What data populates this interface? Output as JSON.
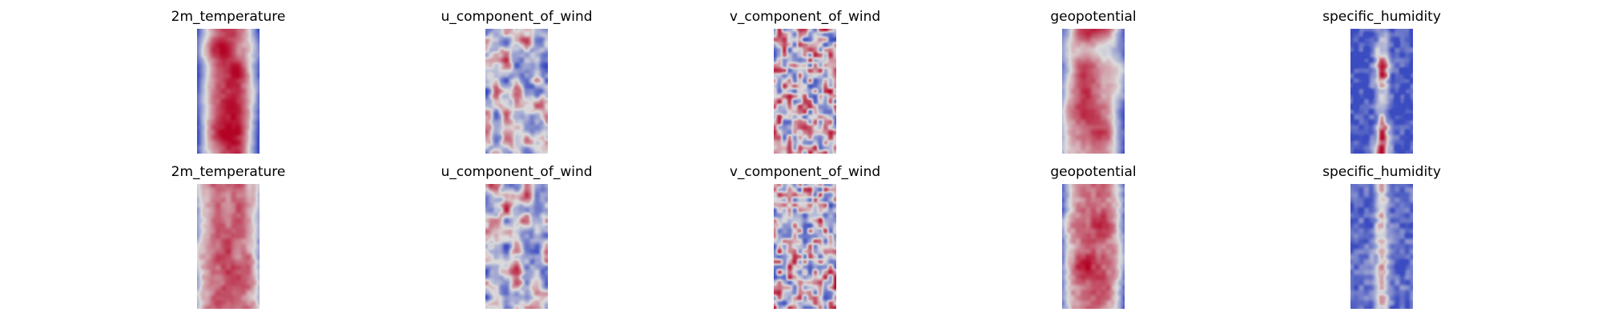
{
  "figure": {
    "panels": [
      {
        "title": "2m_temperature",
        "variable": "2m_temperature",
        "row": 1,
        "colormap": "coolwarm",
        "pattern": "warm-core",
        "seed": 11
      },
      {
        "title": "u_component_of_wind",
        "variable": "u_component_of_wind",
        "row": 1,
        "colormap": "coolwarm",
        "pattern": "wind",
        "seed": 23
      },
      {
        "title": "v_component_of_wind",
        "variable": "v_component_of_wind",
        "row": 1,
        "colormap": "coolwarm",
        "pattern": "wind-fine",
        "seed": 37
      },
      {
        "title": "geopotential",
        "variable": "geopotential",
        "row": 1,
        "colormap": "coolwarm",
        "pattern": "geo",
        "seed": 41
      },
      {
        "title": "specific_humidity",
        "variable": "specific_humidity",
        "row": 1,
        "colormap": "coolwarm",
        "pattern": "humidity",
        "seed": 53
      },
      {
        "title": "2m_temperature",
        "variable": "2m_temperature",
        "row": 2,
        "colormap": "coolwarm",
        "pattern": "warm-broad",
        "seed": 67
      },
      {
        "title": "u_component_of_wind",
        "variable": "u_component_of_wind",
        "row": 2,
        "colormap": "coolwarm",
        "pattern": "wind",
        "seed": 71
      },
      {
        "title": "v_component_of_wind",
        "variable": "v_component_of_wind",
        "row": 2,
        "colormap": "coolwarm",
        "pattern": "wind-fine",
        "seed": 83
      },
      {
        "title": "geopotential",
        "variable": "geopotential",
        "row": 2,
        "colormap": "coolwarm",
        "pattern": "geo-strong",
        "seed": 97
      },
      {
        "title": "specific_humidity",
        "variable": "specific_humidity",
        "row": 2,
        "colormap": "coolwarm",
        "pattern": "humidity-faint",
        "seed": 101
      }
    ]
  },
  "colors": {
    "cold": "#3b4cc0",
    "neutral": "#dddddd",
    "warm": "#b40426"
  }
}
